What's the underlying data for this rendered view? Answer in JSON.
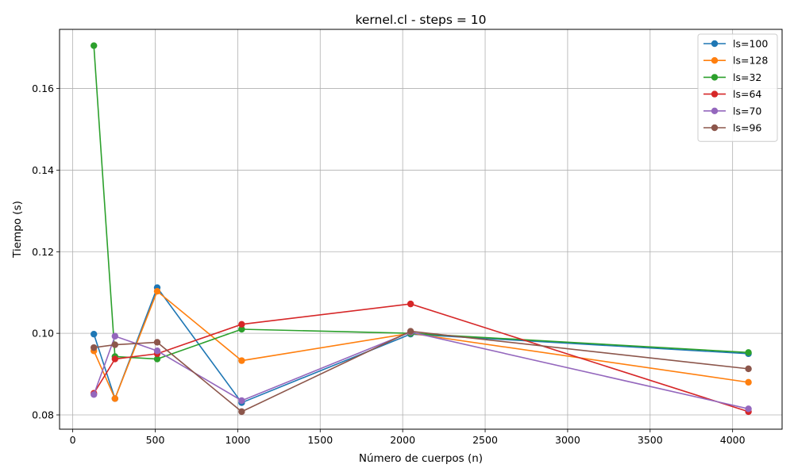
{
  "chart_data": {
    "type": "line",
    "title": "kernel.cl - steps = 10",
    "xlabel": "Número de cuerpos (n)",
    "ylabel": "Tiempo (s)",
    "xlim": [
      -80,
      4300
    ],
    "ylim": [
      0.0765,
      0.1745
    ],
    "xticks": [
      0,
      500,
      1000,
      1500,
      2000,
      2500,
      3000,
      3500,
      4000
    ],
    "xtick_labels": [
      "0",
      "500",
      "1000",
      "1500",
      "2000",
      "2500",
      "3000",
      "3500",
      "4000"
    ],
    "yticks": [
      0.08,
      0.1,
      0.12,
      0.14,
      0.16
    ],
    "ytick_labels": [
      "0.08",
      "0.10",
      "0.12",
      "0.14",
      "0.16"
    ],
    "grid": true,
    "legend_position": "top-right",
    "x": [
      128,
      256,
      512,
      1024,
      2048,
      4096
    ],
    "series": [
      {
        "name": "ls=100",
        "color": "#1f77b4",
        "values": [
          0.0998,
          0.084,
          0.1112,
          0.083,
          0.0998,
          0.095
        ]
      },
      {
        "name": "ls=128",
        "color": "#ff7f0e",
        "values": [
          0.0957,
          0.084,
          0.1103,
          0.0933,
          0.1,
          0.088
        ]
      },
      {
        "name": "ls=32",
        "color": "#2ca02c",
        "values": [
          0.1705,
          0.0943,
          0.0937,
          0.101,
          0.1,
          0.0953
        ]
      },
      {
        "name": "ls=64",
        "color": "#d62728",
        "values": [
          0.0853,
          0.0937,
          0.095,
          0.1022,
          0.1072,
          0.0808
        ]
      },
      {
        "name": "ls=70",
        "color": "#9467bd",
        "values": [
          0.085,
          0.0993,
          0.0957,
          0.0835,
          0.1003,
          0.0815
        ]
      },
      {
        "name": "ls=96",
        "color": "#8c564b",
        "values": [
          0.0965,
          0.0972,
          0.0978,
          0.0808,
          0.1005,
          0.0913
        ]
      }
    ]
  }
}
